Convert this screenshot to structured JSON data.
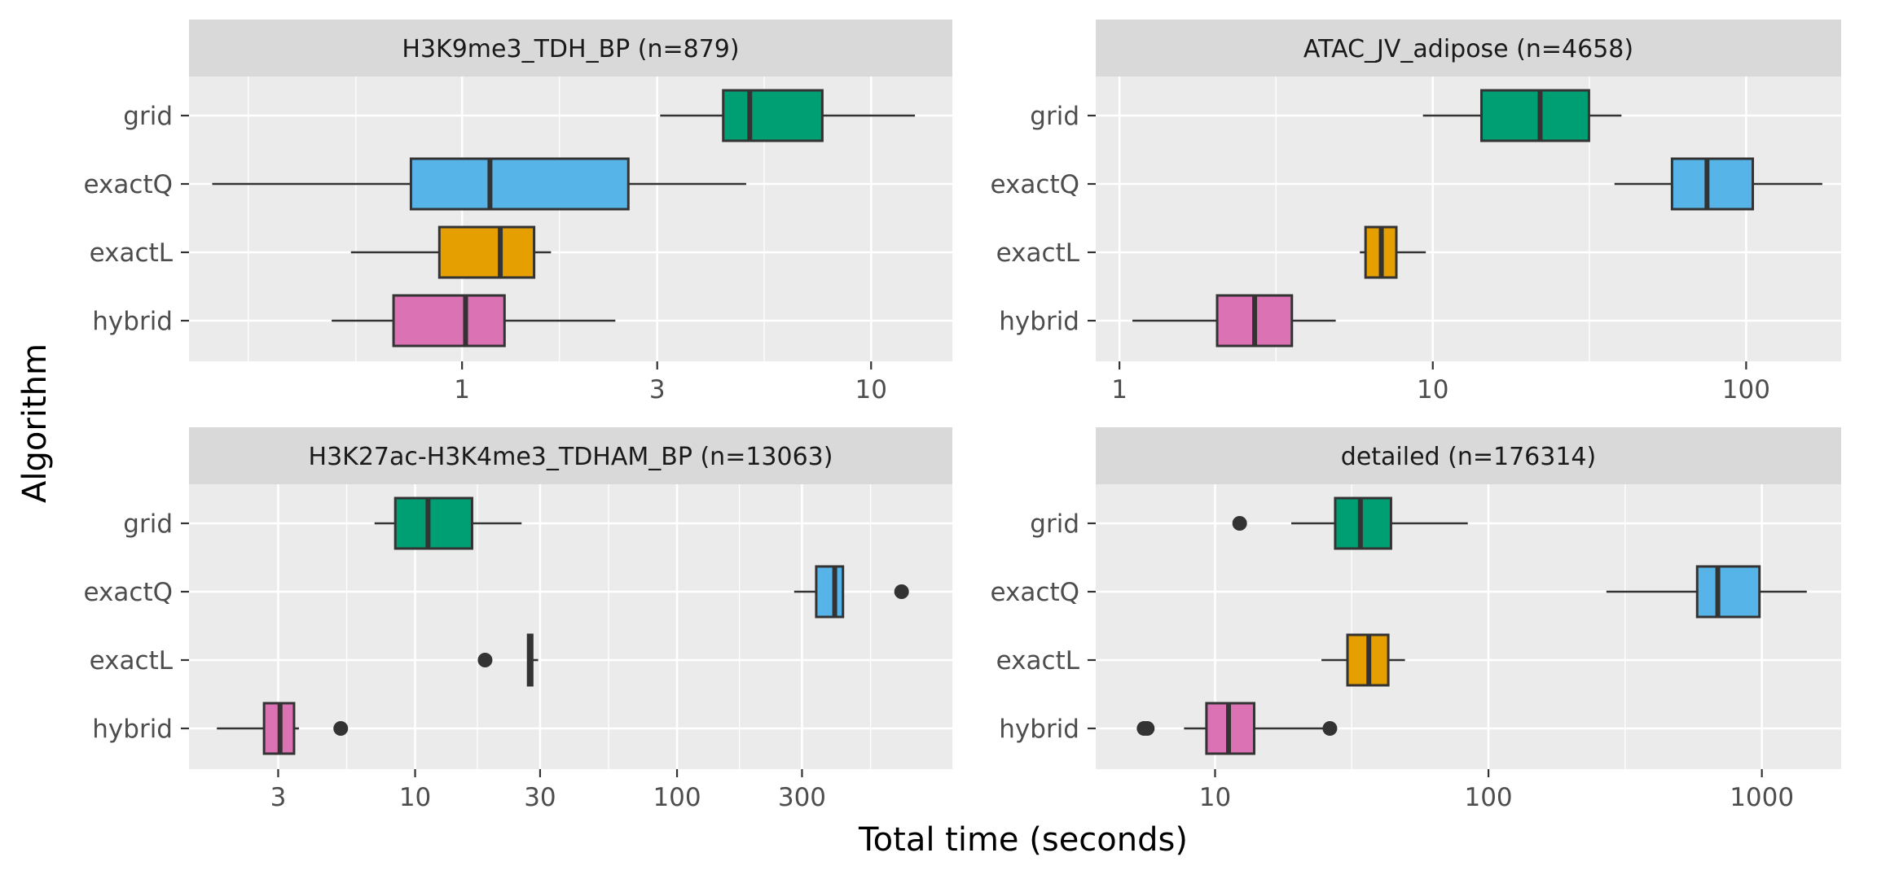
{
  "chart_data": {
    "type": "boxplot",
    "xlabel": "Total time (seconds)",
    "ylabel": "Algorithm",
    "x_scale": "log10",
    "categories": [
      "grid",
      "exactQ",
      "exactL",
      "hybrid"
    ],
    "colors": {
      "grid": "#009E73",
      "exactQ": "#56B4E9",
      "exactL": "#E69F00",
      "hybrid": "#DB72B3"
    },
    "panel_background": "#EBEBEB",
    "strip_background": "#D9D9D9",
    "panels": [
      {
        "title": "H3K9me3_TDH_BP (n=879)",
        "xlim": [
          0.215,
          15.8
        ],
        "ticks": [
          1,
          3,
          10
        ],
        "tick_labels": [
          "1",
          "3",
          "10"
        ],
        "minor_ticks": [
          0.3,
          0.55,
          1.73,
          5.48
        ],
        "boxes": [
          {
            "label": "grid",
            "whisker_low": 3.05,
            "q1": 4.35,
            "median": 5.05,
            "q3": 7.6,
            "whisker_high": 12.8,
            "outliers": []
          },
          {
            "label": "exactQ",
            "whisker_low": 0.245,
            "q1": 0.75,
            "median": 1.17,
            "q3": 2.55,
            "whisker_high": 4.95,
            "outliers": []
          },
          {
            "label": "exactL",
            "whisker_low": 0.535,
            "q1": 0.88,
            "median": 1.24,
            "q3": 1.5,
            "whisker_high": 1.65,
            "outliers": []
          },
          {
            "label": "hybrid",
            "whisker_low": 0.48,
            "q1": 0.68,
            "median": 1.02,
            "q3": 1.27,
            "whisker_high": 2.37,
            "outliers": []
          }
        ]
      },
      {
        "title": "ATAC_JV_adipose (n=4658)",
        "xlim": [
          0.84,
          201
        ],
        "ticks": [
          1,
          10,
          100
        ],
        "tick_labels": [
          "1",
          "10",
          "100"
        ],
        "minor_ticks": [
          3.16,
          31.6
        ],
        "boxes": [
          {
            "label": "grid",
            "whisker_low": 9.3,
            "q1": 14.3,
            "median": 22.0,
            "q3": 31.5,
            "whisker_high": 40.0,
            "outliers": []
          },
          {
            "label": "exactQ",
            "whisker_low": 38.0,
            "q1": 58.0,
            "median": 75.0,
            "q3": 105.0,
            "whisker_high": 175.0,
            "outliers": []
          },
          {
            "label": "exactL",
            "whisker_low": 5.85,
            "q1": 6.1,
            "median": 6.85,
            "q3": 7.65,
            "whisker_high": 9.5,
            "outliers": []
          },
          {
            "label": "hybrid",
            "whisker_low": 1.1,
            "q1": 2.05,
            "median": 2.7,
            "q3": 3.55,
            "whisker_high": 4.9,
            "outliers": []
          }
        ]
      },
      {
        "title": "H3K27ac-H3K4me3_TDHAM_BP (n=13063)",
        "xlim": [
          1.37,
          1125
        ],
        "ticks": [
          3,
          10,
          30,
          100,
          300
        ],
        "tick_labels": [
          "3",
          "10",
          "30",
          "100",
          "300"
        ],
        "minor_ticks": [
          5.48,
          17.3,
          54.8,
          173,
          548
        ],
        "boxes": [
          {
            "label": "grid",
            "whisker_low": 7.0,
            "q1": 8.4,
            "median": 11.2,
            "q3": 16.5,
            "whisker_high": 25.5,
            "outliers": []
          },
          {
            "label": "exactQ",
            "whisker_low": 280.0,
            "q1": 340.0,
            "median": 400.0,
            "q3": 430.0,
            "whisker_high": 430.0,
            "outliers": [
              720.0
            ]
          },
          {
            "label": "exactL",
            "whisker_low": 27.0,
            "q1": 27.0,
            "median": 27.5,
            "q3": 28.0,
            "whisker_high": 29.5,
            "outliers": [
              18.5
            ]
          },
          {
            "label": "hybrid",
            "whisker_low": 1.75,
            "q1": 2.65,
            "median": 3.05,
            "q3": 3.45,
            "whisker_high": 3.6,
            "outliers": [
              5.2
            ]
          }
        ]
      },
      {
        "title": "detailed (n=176314)",
        "xlim": [
          3.66,
          1950
        ],
        "ticks": [
          10,
          100,
          1000
        ],
        "tick_labels": [
          "10",
          "100",
          "1000"
        ],
        "minor_ticks": [
          31.6,
          316
        ],
        "boxes": [
          {
            "label": "grid",
            "whisker_low": 19.0,
            "q1": 27.5,
            "median": 34.0,
            "q3": 44.0,
            "whisker_high": 84.0,
            "outliers": [
              12.3
            ]
          },
          {
            "label": "exactQ",
            "whisker_low": 270.0,
            "q1": 580.0,
            "median": 690.0,
            "q3": 980.0,
            "whisker_high": 1460.0,
            "outliers": []
          },
          {
            "label": "exactL",
            "whisker_low": 24.5,
            "q1": 30.5,
            "median": 36.5,
            "q3": 43.0,
            "whisker_high": 49.5,
            "outliers": []
          },
          {
            "label": "hybrid",
            "whisker_low": 7.7,
            "q1": 9.3,
            "median": 11.2,
            "q3": 13.9,
            "whisker_high": 25.5,
            "outliers": [
              5.65,
              5.5,
              26.3
            ]
          }
        ]
      }
    ]
  }
}
